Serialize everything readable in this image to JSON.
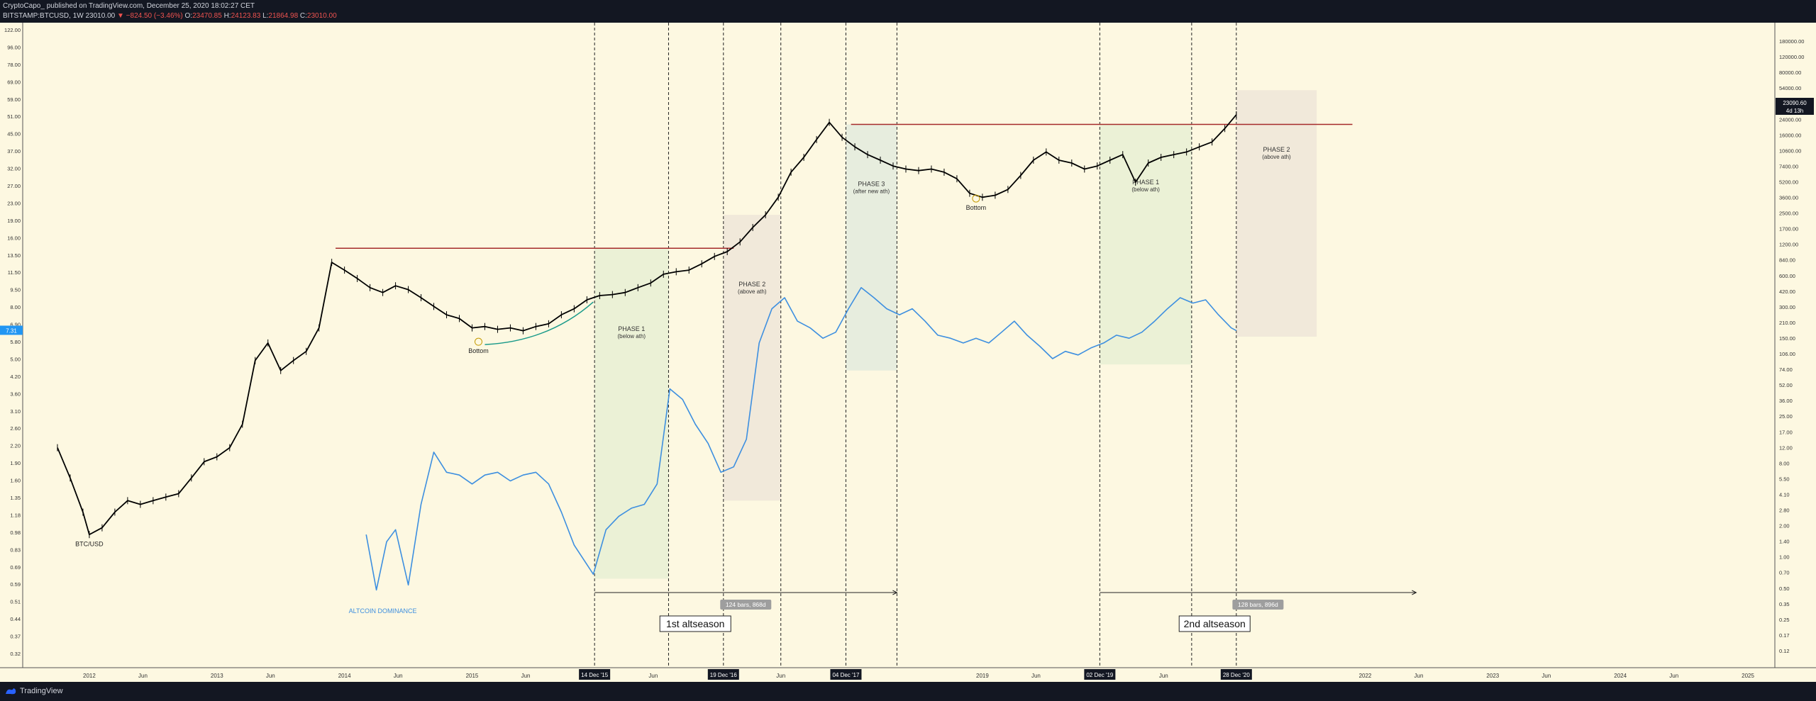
{
  "header": {
    "publisher": "CryptoCapo_ published on TradingView.com, December 25, 2020 18:02:27 CET",
    "symbol": "BITSTAMP:BTCUSD, 1W",
    "last": "23010.00",
    "change": "▼ −824.50 (−3.46%)",
    "o_label": "O:",
    "open": "23470.85",
    "h_label": "H:",
    "high": "24123.83",
    "l_label": "L:",
    "low": "21864.98",
    "c_label": "C:",
    "close": "23010.00"
  },
  "footer": {
    "brand": "TradingView",
    "brand_icon": "tradingview-logo-icon"
  },
  "colors": {
    "background": "#fdf8e1",
    "btc_candles": "#000000",
    "altcoin_line": "#3d8fe0",
    "ath_line": "#a52a2a",
    "phase1_zone": "#e8f0d4",
    "phase2_zone": "#efe6d8",
    "phase3_zone": "#e3ebdd",
    "bottom_curve": "#1a9a8a"
  },
  "chart_data": {
    "type": "line",
    "x_ticks": [
      "2012",
      "Jun",
      "2013",
      "Jun",
      "2014",
      "Jun",
      "2015",
      "Jun",
      "Jun",
      "Jun",
      "2019",
      "Jun",
      "Jun",
      "2022",
      "Jun",
      "2023",
      "Jun",
      "2024",
      "Jun",
      "2025"
    ],
    "x_highlight_ticks": [
      "14 Dec '15",
      "19 Dec '16",
      "04 Dec '17",
      "02 Dec '19",
      "28 Dec '20"
    ],
    "left_axis_ticks": [
      "122.00",
      "96.00",
      "78.00",
      "69.00",
      "59.00",
      "51.00",
      "45.00",
      "37.00",
      "32.00",
      "27.00",
      "23.00",
      "19.00",
      "16.00",
      "13.50",
      "11.50",
      "9.50",
      "8.00",
      "6.90",
      "5.80",
      "5.00",
      "4.20",
      "3.60",
      "3.10",
      "2.60",
      "2.20",
      "1.90",
      "1.60",
      "1.35",
      "1.18",
      "0.98",
      "0.83",
      "0.69",
      "0.59",
      "0.51",
      "0.44",
      "0.37",
      "0.32"
    ],
    "left_axis_current": "7.31",
    "right_axis_ticks": [
      "180000.00",
      "120000.00",
      "80000.00",
      "54000.00",
      "36000.00",
      "24000.00",
      "16000.00",
      "10600.00",
      "7400.00",
      "5200.00",
      "3600.00",
      "2500.00",
      "1700.00",
      "1200.00",
      "840.00",
      "600.00",
      "420.00",
      "300.00",
      "210.00",
      "150.00",
      "106.00",
      "74.00",
      "52.00",
      "36.00",
      "25.00",
      "17.00",
      "12.00",
      "8.00",
      "5.50",
      "4.10",
      "2.80",
      "2.00",
      "1.40",
      "1.00",
      "0.70",
      "0.50",
      "0.35",
      "0.25",
      "0.17",
      "0.12"
    ],
    "right_axis_current": "23090.60",
    "right_axis_countdown": "4d 13h",
    "series": [
      {
        "name": "BTC/USD",
        "points": [
          [
            2011.75,
            2.4
          ],
          [
            2011.85,
            1.8
          ],
          [
            2011.95,
            1.3
          ],
          [
            2012.0,
            1.05
          ],
          [
            2012.1,
            1.12
          ],
          [
            2012.2,
            1.3
          ],
          [
            2012.3,
            1.45
          ],
          [
            2012.4,
            1.4
          ],
          [
            2012.5,
            1.45
          ],
          [
            2012.6,
            1.5
          ],
          [
            2012.7,
            1.55
          ],
          [
            2012.8,
            1.8
          ],
          [
            2012.9,
            2.1
          ],
          [
            2013.0,
            2.2
          ],
          [
            2013.1,
            2.4
          ],
          [
            2013.2,
            3.0
          ],
          [
            2013.3,
            5.5
          ],
          [
            2013.4,
            6.5
          ],
          [
            2013.5,
            5.0
          ],
          [
            2013.6,
            5.5
          ],
          [
            2013.7,
            6.0
          ],
          [
            2013.8,
            7.5
          ],
          [
            2013.9,
            14.0
          ],
          [
            2014.0,
            13.0
          ],
          [
            2014.1,
            12.0
          ],
          [
            2014.2,
            11.0
          ],
          [
            2014.3,
            10.5
          ],
          [
            2014.4,
            11.2
          ],
          [
            2014.5,
            10.8
          ],
          [
            2014.6,
            10.0
          ],
          [
            2014.7,
            9.2
          ],
          [
            2014.8,
            8.5
          ],
          [
            2014.9,
            8.2
          ],
          [
            2015.0,
            7.5
          ],
          [
            2015.1,
            7.6
          ],
          [
            2015.2,
            7.4
          ],
          [
            2015.3,
            7.5
          ],
          [
            2015.4,
            7.3
          ],
          [
            2015.5,
            7.6
          ],
          [
            2015.6,
            7.8
          ],
          [
            2015.7,
            8.5
          ],
          [
            2015.8,
            9.0
          ],
          [
            2015.9,
            9.8
          ],
          [
            2016.0,
            10.2
          ],
          [
            2016.1,
            10.3
          ],
          [
            2016.2,
            10.5
          ],
          [
            2016.3,
            11.0
          ],
          [
            2016.4,
            11.5
          ],
          [
            2016.5,
            12.5
          ],
          [
            2016.6,
            12.8
          ],
          [
            2016.7,
            13.0
          ],
          [
            2016.8,
            13.8
          ],
          [
            2016.9,
            14.8
          ],
          [
            2017.0,
            15.5
          ],
          [
            2017.1,
            17.0
          ],
          [
            2017.2,
            19.5
          ],
          [
            2017.3,
            22.0
          ],
          [
            2017.4,
            26.0
          ],
          [
            2017.5,
            33.0
          ],
          [
            2017.6,
            38.0
          ],
          [
            2017.7,
            45.0
          ],
          [
            2017.8,
            53.0
          ],
          [
            2017.9,
            46.0
          ],
          [
            2018.0,
            42.0
          ],
          [
            2018.1,
            39.0
          ],
          [
            2018.2,
            37.0
          ],
          [
            2018.3,
            35.0
          ],
          [
            2018.4,
            34.0
          ],
          [
            2018.5,
            33.5
          ],
          [
            2018.6,
            34.0
          ],
          [
            2018.7,
            33.0
          ],
          [
            2018.8,
            31.0
          ],
          [
            2018.9,
            27.0
          ],
          [
            2019.0,
            26.0
          ],
          [
            2019.1,
            26.5
          ],
          [
            2019.2,
            28.0
          ],
          [
            2019.3,
            32.0
          ],
          [
            2019.4,
            37.0
          ],
          [
            2019.5,
            40.0
          ],
          [
            2019.6,
            37.0
          ],
          [
            2019.7,
            36.0
          ],
          [
            2019.8,
            34.0
          ],
          [
            2019.9,
            35.0
          ],
          [
            2020.0,
            37.0
          ],
          [
            2020.1,
            39.0
          ],
          [
            2020.2,
            30.0
          ],
          [
            2020.3,
            36.0
          ],
          [
            2020.4,
            38.0
          ],
          [
            2020.5,
            39.0
          ],
          [
            2020.6,
            40.0
          ],
          [
            2020.7,
            42.0
          ],
          [
            2020.8,
            44.0
          ],
          [
            2020.9,
            50.0
          ],
          [
            2020.99,
            57.0
          ]
        ]
      },
      {
        "name": "ALTCOIN DOMINANCE",
        "points": [
          [
            2014.17,
            1.05
          ],
          [
            2014.25,
            0.62
          ],
          [
            2014.33,
            0.98
          ],
          [
            2014.4,
            1.1
          ],
          [
            2014.5,
            0.65
          ],
          [
            2014.6,
            1.4
          ],
          [
            2014.7,
            2.3
          ],
          [
            2014.8,
            1.9
          ],
          [
            2014.9,
            1.85
          ],
          [
            2015.0,
            1.7
          ],
          [
            2015.1,
            1.85
          ],
          [
            2015.2,
            1.9
          ],
          [
            2015.3,
            1.75
          ],
          [
            2015.4,
            1.85
          ],
          [
            2015.5,
            1.9
          ],
          [
            2015.6,
            1.7
          ],
          [
            2015.7,
            1.3
          ],
          [
            2015.8,
            0.95
          ],
          [
            2015.95,
            0.72
          ],
          [
            2016.05,
            1.1
          ],
          [
            2016.15,
            1.25
          ],
          [
            2016.25,
            1.35
          ],
          [
            2016.35,
            1.4
          ],
          [
            2016.45,
            1.7
          ],
          [
            2016.55,
            4.2
          ],
          [
            2016.65,
            3.8
          ],
          [
            2016.75,
            3.0
          ],
          [
            2016.85,
            2.5
          ],
          [
            2016.95,
            1.9
          ],
          [
            2017.05,
            2.0
          ],
          [
            2017.15,
            2.6
          ],
          [
            2017.25,
            6.5
          ],
          [
            2017.35,
            9.0
          ],
          [
            2017.45,
            10.0
          ],
          [
            2017.55,
            8.0
          ],
          [
            2017.65,
            7.5
          ],
          [
            2017.75,
            6.8
          ],
          [
            2017.85,
            7.2
          ],
          [
            2017.95,
            9.0
          ],
          [
            2018.05,
            11.0
          ],
          [
            2018.15,
            10.0
          ],
          [
            2018.25,
            9.0
          ],
          [
            2018.35,
            8.5
          ],
          [
            2018.45,
            9.0
          ],
          [
            2018.55,
            8.0
          ],
          [
            2018.65,
            7.0
          ],
          [
            2018.75,
            6.8
          ],
          [
            2018.85,
            6.5
          ],
          [
            2018.95,
            6.8
          ],
          [
            2019.05,
            6.5
          ],
          [
            2019.15,
            7.2
          ],
          [
            2019.25,
            8.0
          ],
          [
            2019.35,
            7.0
          ],
          [
            2019.45,
            6.3
          ],
          [
            2019.55,
            5.6
          ],
          [
            2019.65,
            6.0
          ],
          [
            2019.75,
            5.8
          ],
          [
            2019.85,
            6.2
          ],
          [
            2019.95,
            6.5
          ],
          [
            2020.05,
            7.0
          ],
          [
            2020.15,
            6.8
          ],
          [
            2020.25,
            7.2
          ],
          [
            2020.35,
            8.0
          ],
          [
            2020.45,
            9.0
          ],
          [
            2020.55,
            10.0
          ],
          [
            2020.65,
            9.5
          ],
          [
            2020.75,
            9.8
          ],
          [
            2020.85,
            8.5
          ],
          [
            2020.95,
            7.5
          ],
          [
            2020.99,
            7.31
          ]
        ]
      }
    ],
    "ath_lines": [
      {
        "from_x": 2013.93,
        "to_x": 2017.05,
        "y": 16.0
      },
      {
        "from_x": 2017.97,
        "to_x": 2021.9,
        "y": 52.0
      }
    ],
    "zones": [
      {
        "label": "PHASE 1",
        "sublabel": "(below ath)",
        "from_x": 2015.96,
        "to_x": 2016.54,
        "y_top": 16.0,
        "y_bottom": 0.69
      },
      {
        "label": "PHASE 2",
        "sublabel": "(above ath)",
        "from_x": 2016.97,
        "to_x": 2017.42,
        "y_top": 22.0,
        "y_bottom": 1.45
      },
      {
        "label": "PHASE 3",
        "sublabel": "(after new ath)",
        "from_x": 2017.93,
        "to_x": 2018.33,
        "y_top": 52.0,
        "y_bottom": 5.0
      },
      {
        "label": "PHASE 1",
        "sublabel": "(below ath)",
        "from_x": 2019.92,
        "to_x": 2020.64,
        "y_top": 52.0,
        "y_bottom": 5.3
      },
      {
        "label": "PHASE 2",
        "sublabel": "(above ath)",
        "from_x": 2020.99,
        "to_x": 2021.62,
        "y_top": 72.0,
        "y_bottom": 6.9
      }
    ],
    "vertical_lines_x": [
      2015.96,
      2016.54,
      2016.97,
      2017.42,
      2017.93,
      2018.33,
      2019.92,
      2020.64,
      2020.99
    ],
    "annotations": [
      {
        "text": "Bottom",
        "x": 2015.05,
        "y": 6.4
      },
      {
        "text": "Bottom",
        "x": 2018.95,
        "y": 25.0
      },
      {
        "text": "BTC/USD",
        "x": 2012.0,
        "y": 1.02
      },
      {
        "text": "ALTCOIN DOMINANCE",
        "x": 2014.3,
        "y": 0.54
      }
    ],
    "measurements": [
      {
        "text": "124 bars, 868d",
        "from_x": 2015.96,
        "to_x": 2018.33
      },
      {
        "text": "128 bars, 896d",
        "from_x": 2019.92,
        "to_x": 2022.4
      }
    ],
    "season_labels": [
      {
        "text": "1st altseason",
        "x": 2016.75
      },
      {
        "text": "2nd altseason",
        "x": 2020.82
      }
    ],
    "x_range": [
      2011.5,
      2025.2
    ],
    "y_range": [
      0.3,
      135
    ],
    "log_scale": true,
    "grid": false
  }
}
